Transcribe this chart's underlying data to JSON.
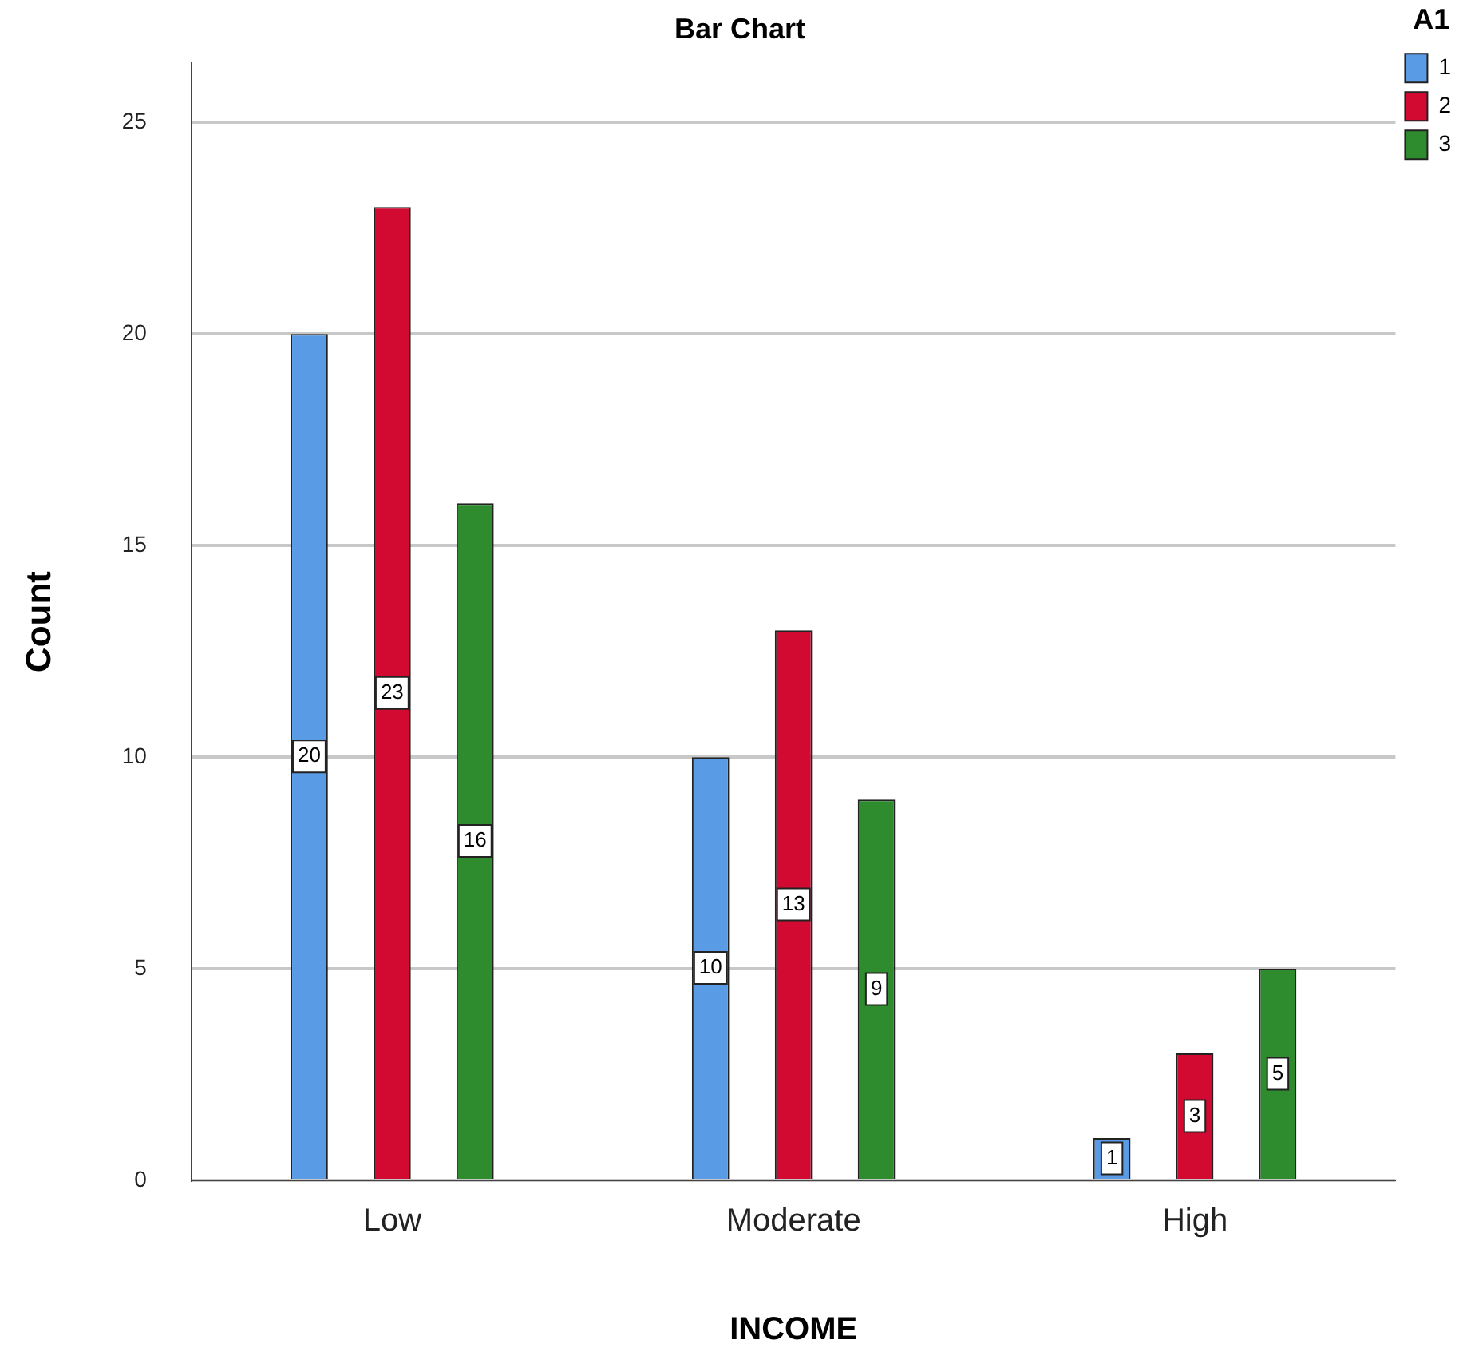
{
  "chart_data": {
    "type": "bar",
    "title": "Bar Chart",
    "xlabel": "INCOME",
    "ylabel": "Count",
    "legend_title": "A1",
    "categories": [
      "Low",
      "Moderate",
      "High"
    ],
    "series": [
      {
        "name": "1",
        "color": "#5a9be6",
        "values": [
          20,
          10,
          1
        ]
      },
      {
        "name": "2",
        "color": "#d20a32",
        "values": [
          23,
          13,
          3
        ]
      },
      {
        "name": "3",
        "color": "#2e8b2e",
        "values": [
          16,
          9,
          5
        ]
      }
    ],
    "ylim": [
      0,
      26.4
    ],
    "yticks": [
      0,
      5,
      10,
      15,
      20,
      25
    ],
    "grid": "y",
    "legend": "top right",
    "data_labels": true
  }
}
